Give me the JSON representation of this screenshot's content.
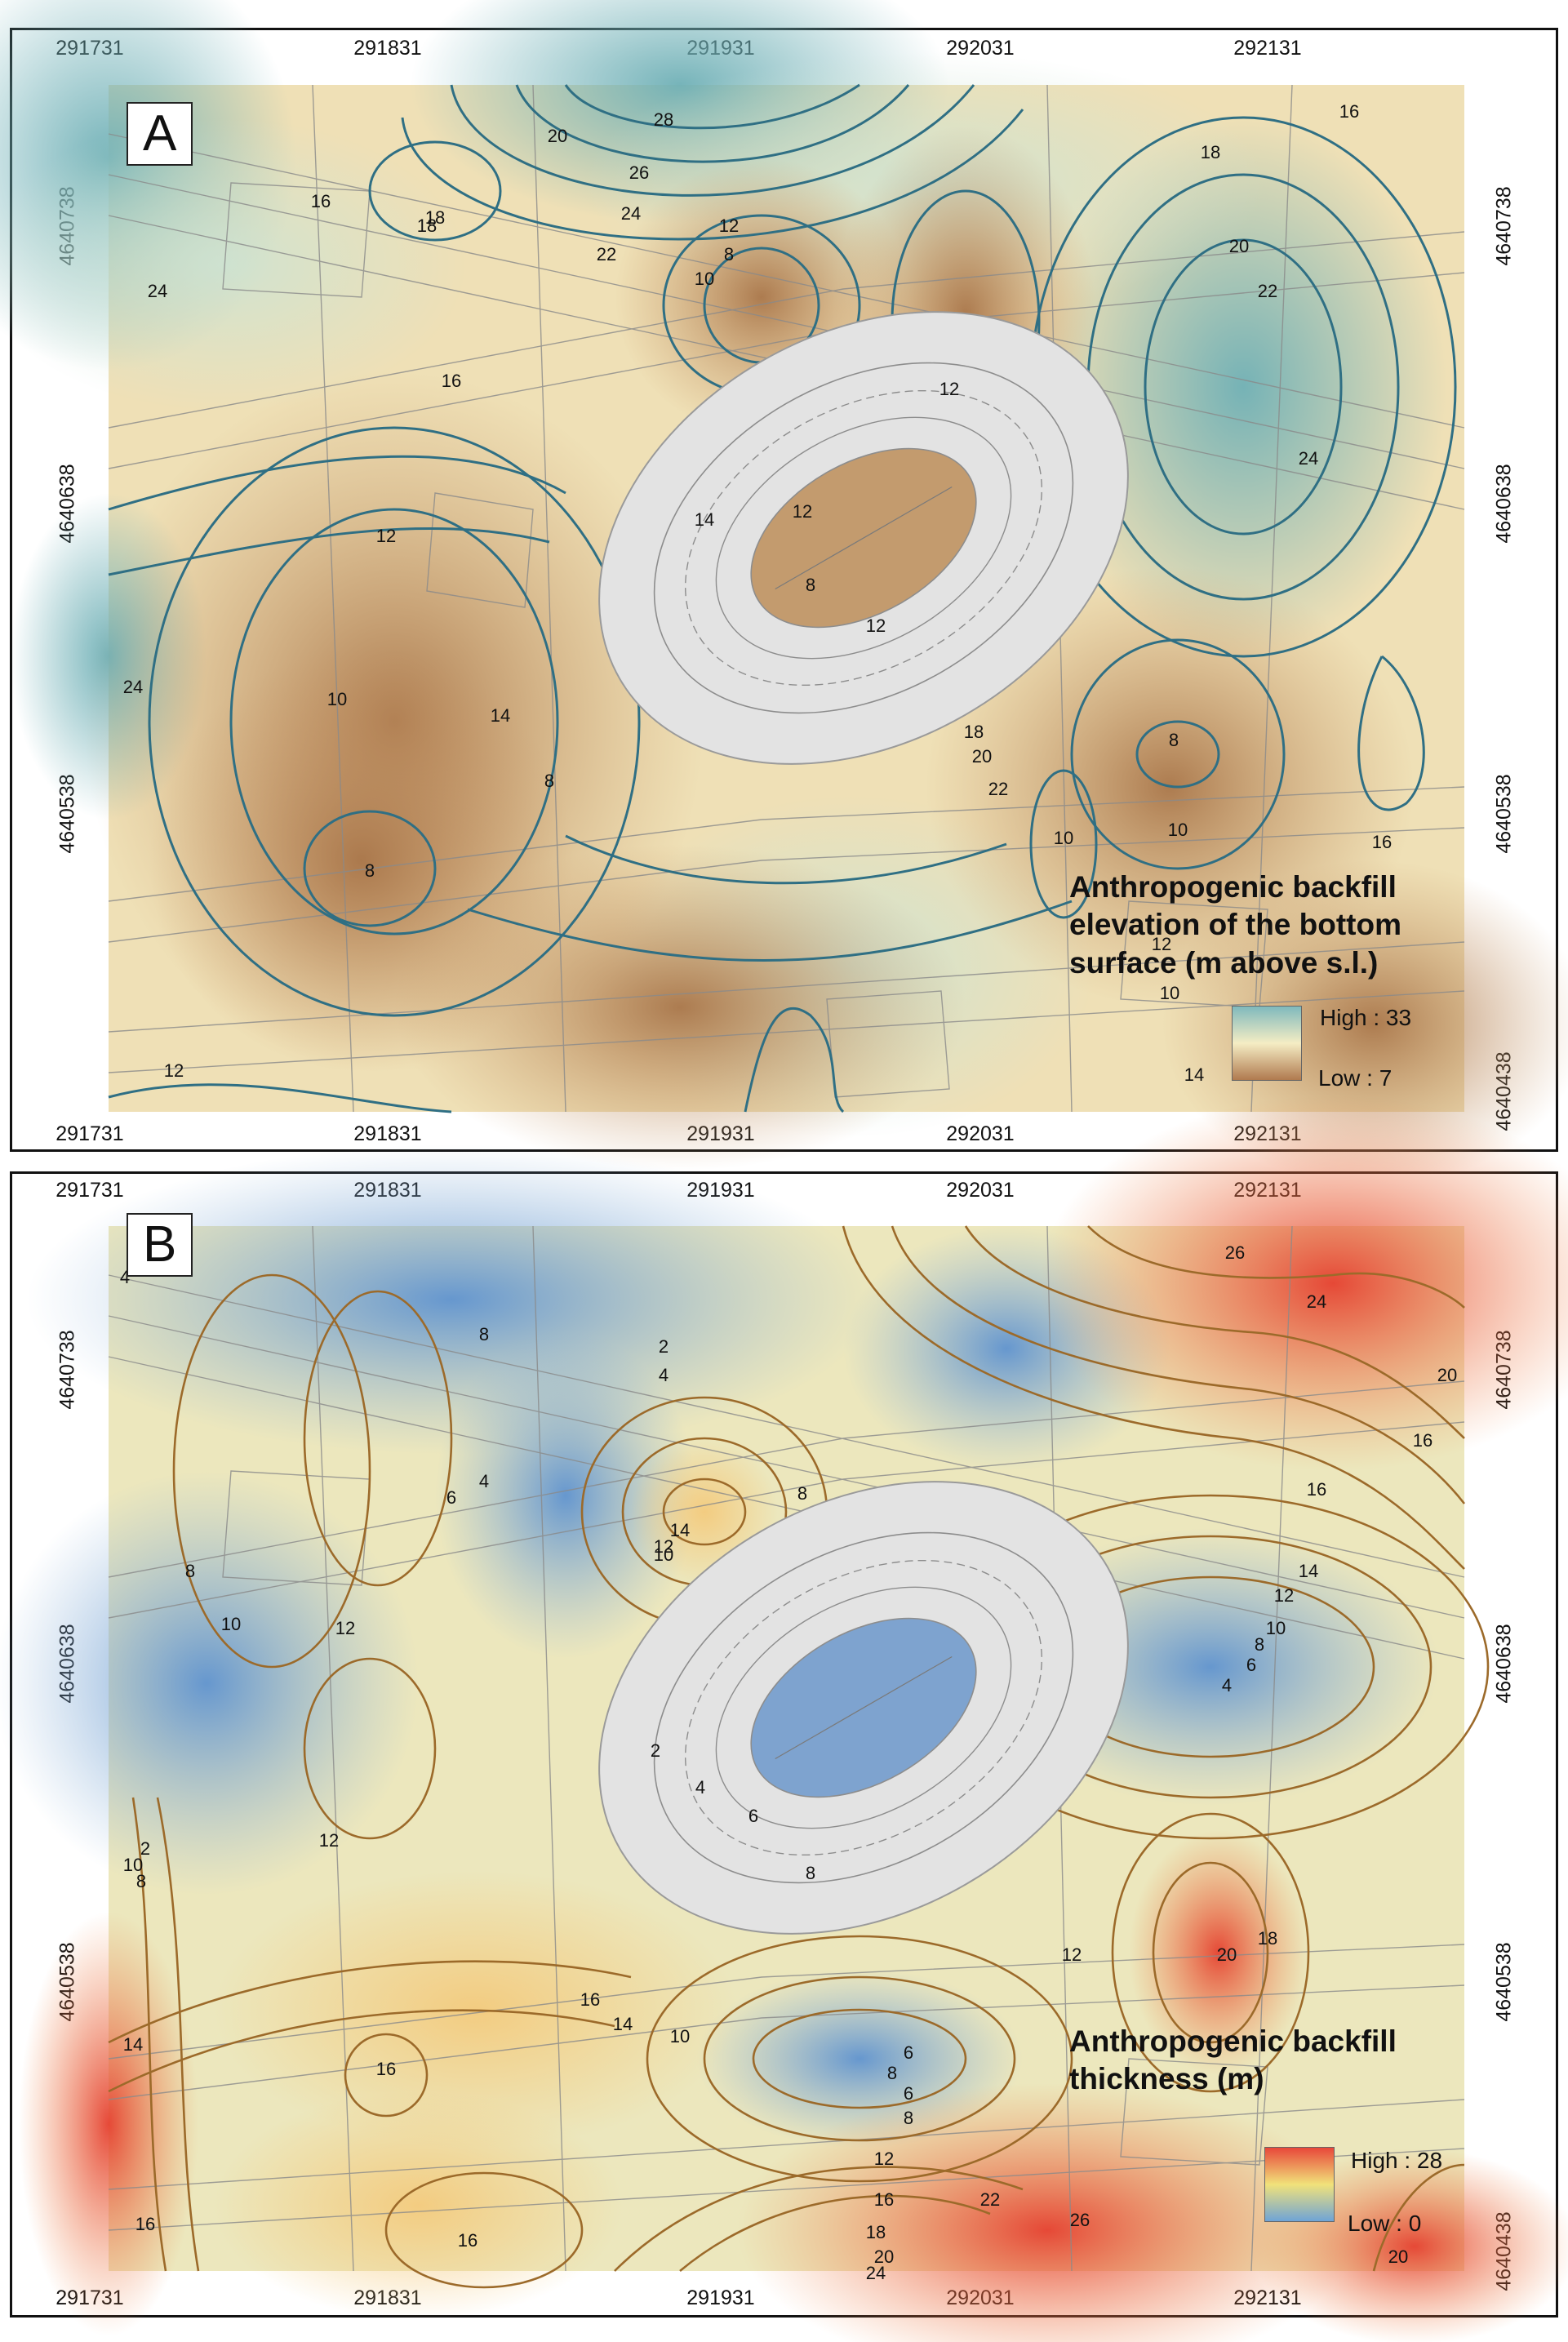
{
  "panels": [
    {
      "label": "A",
      "x_ticks": [
        "291731",
        "291831",
        "291931",
        "292031",
        "292131"
      ],
      "y_ticks": [
        "4640738",
        "4640638",
        "4640538",
        "4640438"
      ],
      "legend": {
        "title_lines": [
          "Anthropogenic backfill",
          "elevation of the  bottom",
          "surface  (m above s.l.)"
        ],
        "high": "High : 33",
        "low": "Low : 7",
        "colors": {
          "high": "#7fb9bd",
          "mid": "#f5edc4",
          "low": "#b07a4f"
        }
      },
      "contour_labels": [
        "28",
        "26",
        "24",
        "22",
        "20",
        "18",
        "16",
        "14",
        "12",
        "10",
        "8",
        "18",
        "16",
        "24",
        "12",
        "10",
        "8",
        "12",
        "14",
        "12",
        "8",
        "12",
        "18",
        "20",
        "22",
        "24",
        "8",
        "10",
        "10",
        "16",
        "18",
        "20",
        "22",
        "10",
        "12",
        "14",
        "24",
        "12",
        "8",
        "16"
      ]
    },
    {
      "label": "B",
      "x_ticks": [
        "291731",
        "291831",
        "291931",
        "292031",
        "292131"
      ],
      "y_ticks": [
        "4640738",
        "4640638",
        "4640538",
        "4640438"
      ],
      "legend": {
        "title_lines": [
          "Anthropogenic backfill",
          "thickness (m)"
        ],
        "high": "High : 28",
        "low": "Low : 0",
        "colors": {
          "high": "#e8473a",
          "mid": "#f1e27a",
          "low": "#6fa4d6"
        }
      },
      "contour_labels": [
        "4",
        "8",
        "2",
        "4",
        "26",
        "24",
        "20",
        "16",
        "16",
        "14",
        "12",
        "10",
        "8",
        "6",
        "4",
        "6",
        "4",
        "12",
        "14",
        "10",
        "8",
        "8",
        "10",
        "12",
        "12",
        "2",
        "10",
        "8",
        "6",
        "8",
        "2",
        "4",
        "6",
        "8",
        "12",
        "20",
        "18",
        "16",
        "14",
        "10",
        "6",
        "8",
        "12",
        "16",
        "18",
        "20",
        "22",
        "26",
        "24",
        "16",
        "16",
        "20",
        "14",
        "16"
      ]
    }
  ]
}
